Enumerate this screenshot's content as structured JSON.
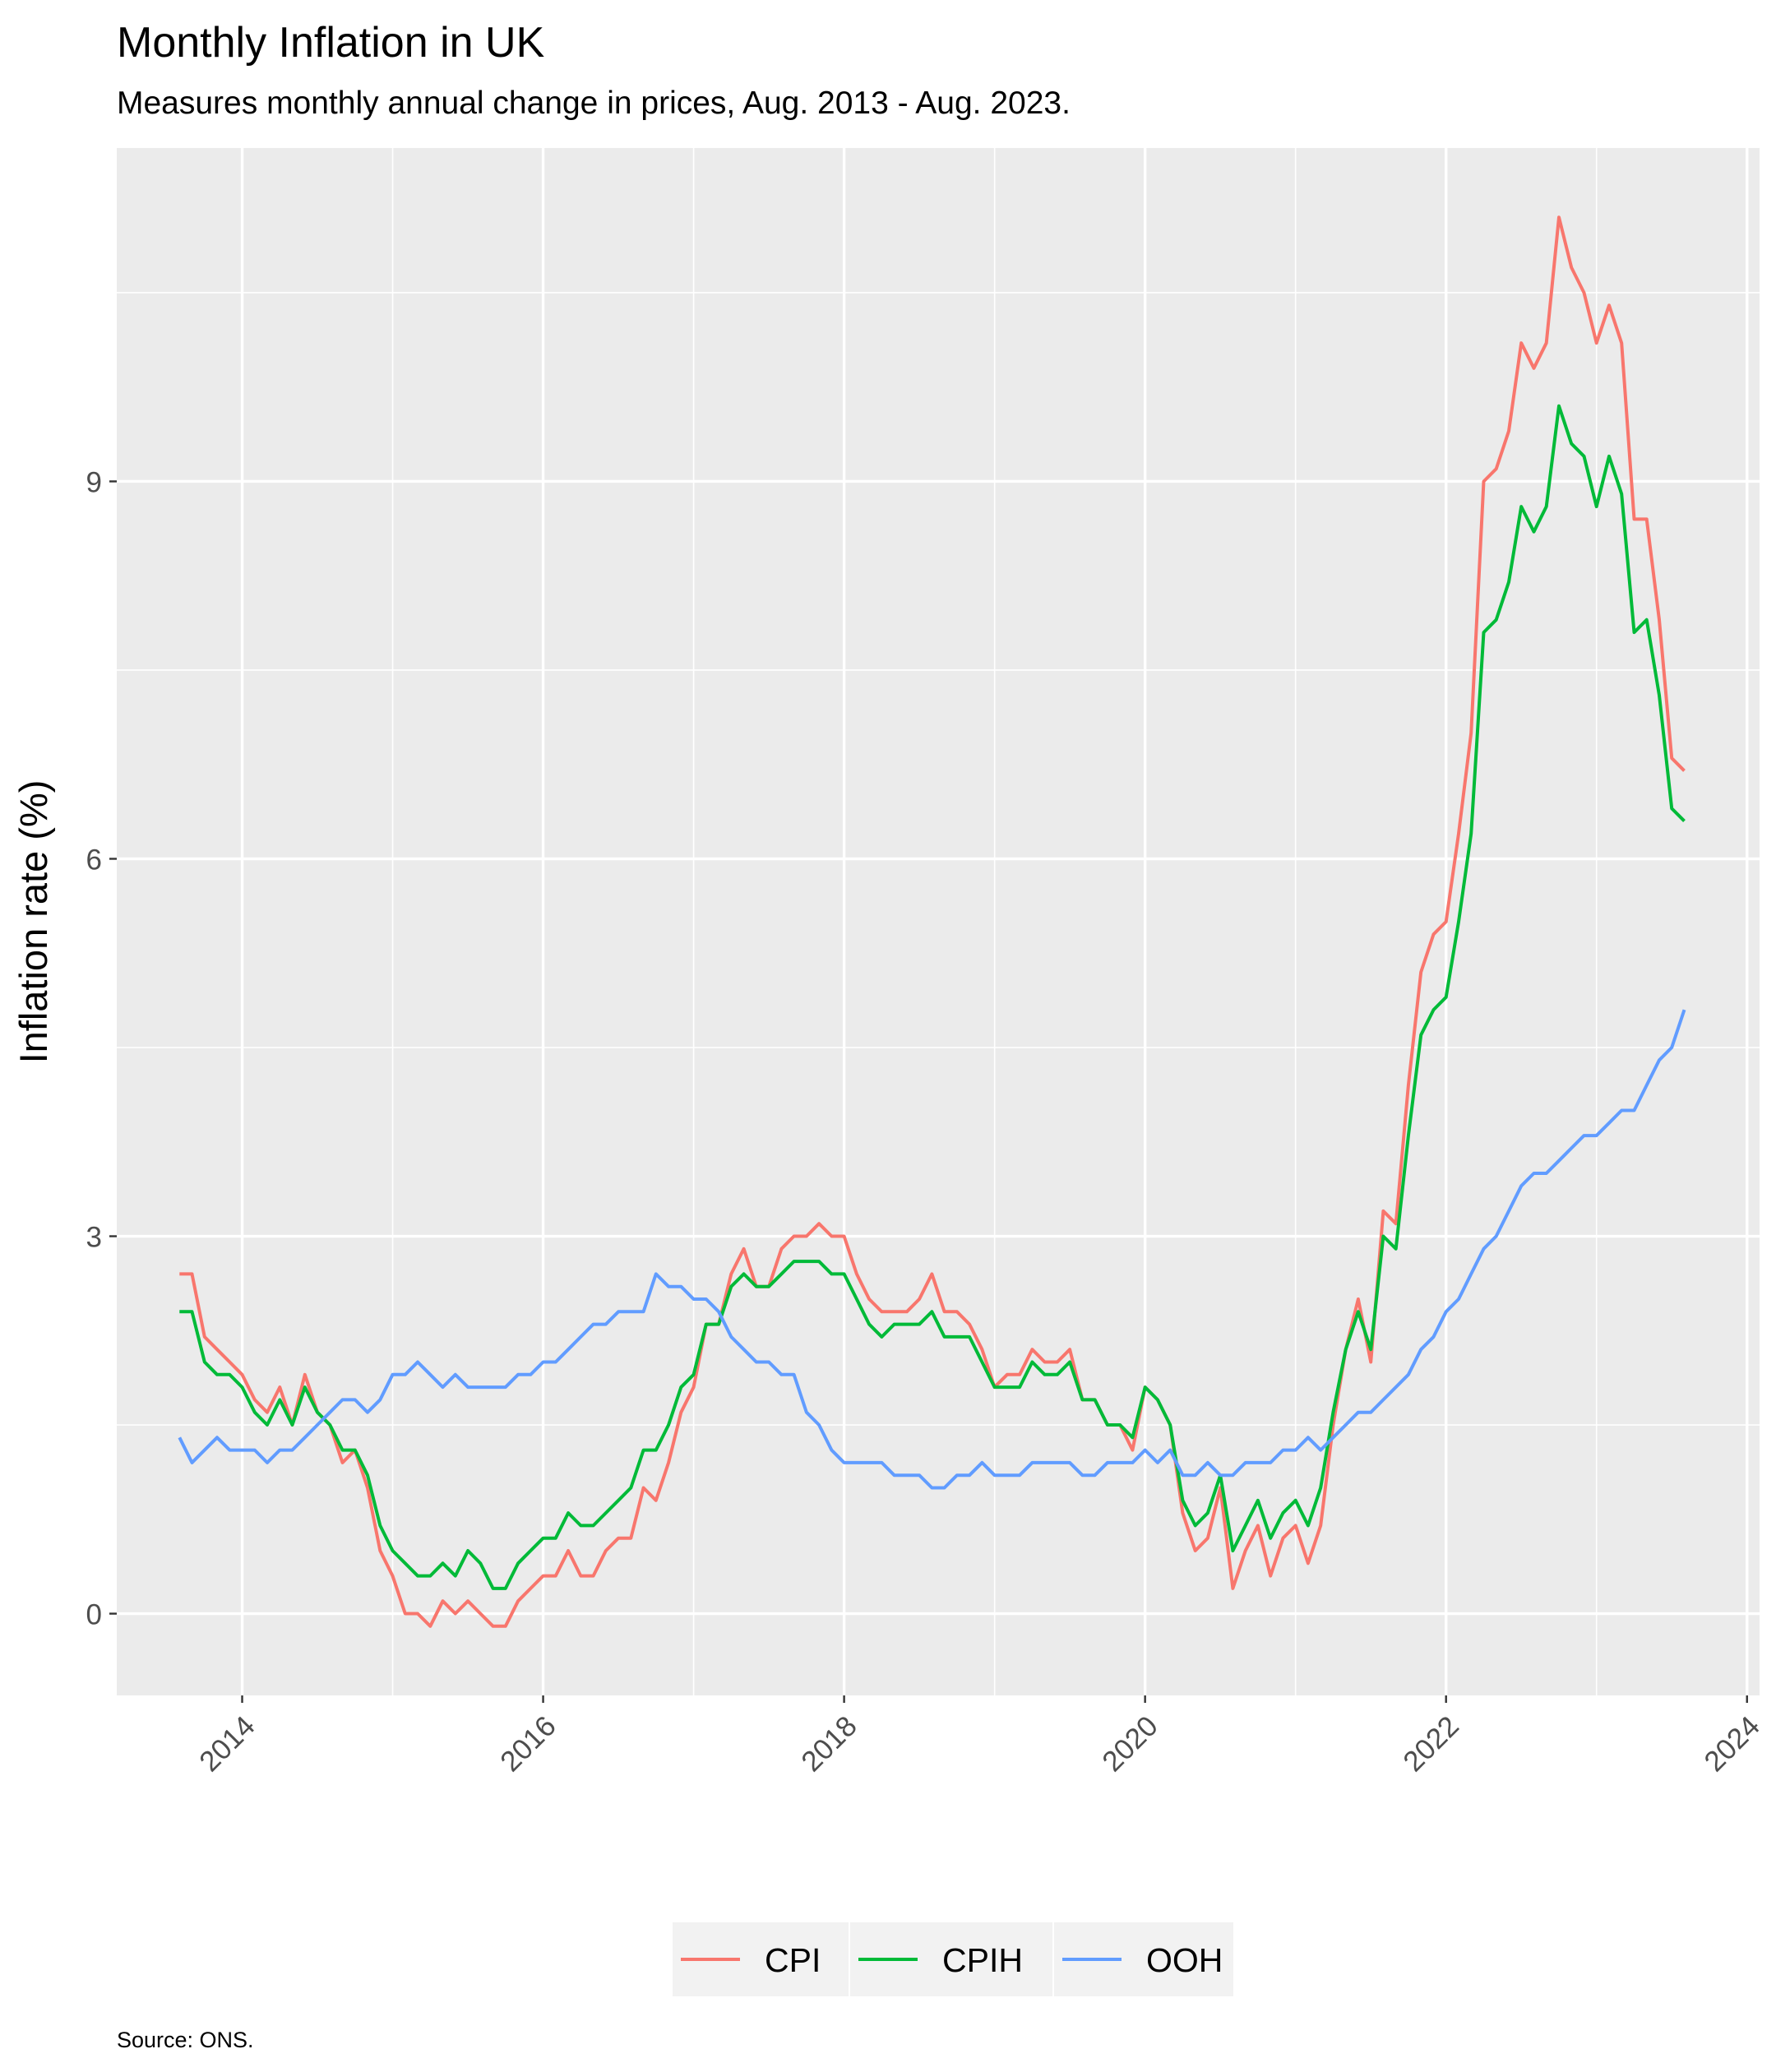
{
  "chart_data": {
    "type": "line",
    "title": "Monthly Inflation in UK",
    "subtitle": "Measures monthly annual change in prices, Aug. 2013 - Aug. 2023.",
    "caption": "Source: ONS.",
    "xlabel": "",
    "ylabel": "Inflation rate (%)",
    "x_ticks": [
      "2014",
      "2016",
      "2018",
      "2020",
      "2022",
      "2024"
    ],
    "y_ticks": [
      0,
      3,
      6,
      9
    ],
    "ylim": [
      -0.65,
      11.65
    ],
    "x_range": [
      "2013-03",
      "2024-02"
    ],
    "grid": true,
    "legend_position": "bottom",
    "colors": {
      "CPI": "#F8766D",
      "CPIH": "#00BA38",
      "OOH": "#619CFF",
      "panel": "#EBEBEB",
      "grid": "#FFFFFF"
    },
    "x": [
      "2013-08",
      "2013-09",
      "2013-10",
      "2013-11",
      "2013-12",
      "2014-01",
      "2014-02",
      "2014-03",
      "2014-04",
      "2014-05",
      "2014-06",
      "2014-07",
      "2014-08",
      "2014-09",
      "2014-10",
      "2014-11",
      "2014-12",
      "2015-01",
      "2015-02",
      "2015-03",
      "2015-04",
      "2015-05",
      "2015-06",
      "2015-07",
      "2015-08",
      "2015-09",
      "2015-10",
      "2015-11",
      "2015-12",
      "2016-01",
      "2016-02",
      "2016-03",
      "2016-04",
      "2016-05",
      "2016-06",
      "2016-07",
      "2016-08",
      "2016-09",
      "2016-10",
      "2016-11",
      "2016-12",
      "2017-01",
      "2017-02",
      "2017-03",
      "2017-04",
      "2017-05",
      "2017-06",
      "2017-07",
      "2017-08",
      "2017-09",
      "2017-10",
      "2017-11",
      "2017-12",
      "2018-01",
      "2018-02",
      "2018-03",
      "2018-04",
      "2018-05",
      "2018-06",
      "2018-07",
      "2018-08",
      "2018-09",
      "2018-10",
      "2018-11",
      "2018-12",
      "2019-01",
      "2019-02",
      "2019-03",
      "2019-04",
      "2019-05",
      "2019-06",
      "2019-07",
      "2019-08",
      "2019-09",
      "2019-10",
      "2019-11",
      "2019-12",
      "2020-01",
      "2020-02",
      "2020-03",
      "2020-04",
      "2020-05",
      "2020-06",
      "2020-07",
      "2020-08",
      "2020-09",
      "2020-10",
      "2020-11",
      "2020-12",
      "2021-01",
      "2021-02",
      "2021-03",
      "2021-04",
      "2021-05",
      "2021-06",
      "2021-07",
      "2021-08",
      "2021-09",
      "2021-10",
      "2021-11",
      "2021-12",
      "2022-01",
      "2022-02",
      "2022-03",
      "2022-04",
      "2022-05",
      "2022-06",
      "2022-07",
      "2022-08",
      "2022-09",
      "2022-10",
      "2022-11",
      "2022-12",
      "2023-01",
      "2023-02",
      "2023-03",
      "2023-04",
      "2023-05",
      "2023-06",
      "2023-07",
      "2023-08"
    ],
    "series": [
      {
        "name": "CPI",
        "values": [
          2.7,
          2.7,
          2.2,
          2.1,
          2.0,
          1.9,
          1.7,
          1.6,
          1.8,
          1.5,
          1.9,
          1.6,
          1.5,
          1.2,
          1.3,
          1.0,
          0.5,
          0.3,
          0.0,
          0.0,
          -0.1,
          0.1,
          0.0,
          0.1,
          0.0,
          -0.1,
          -0.1,
          0.1,
          0.2,
          0.3,
          0.3,
          0.5,
          0.3,
          0.3,
          0.5,
          0.6,
          0.6,
          1.0,
          0.9,
          1.2,
          1.6,
          1.8,
          2.3,
          2.3,
          2.7,
          2.9,
          2.6,
          2.6,
          2.9,
          3.0,
          3.0,
          3.1,
          3.0,
          3.0,
          2.7,
          2.5,
          2.4,
          2.4,
          2.4,
          2.5,
          2.7,
          2.4,
          2.4,
          2.3,
          2.1,
          1.8,
          1.9,
          1.9,
          2.1,
          2.0,
          2.0,
          2.1,
          1.7,
          1.7,
          1.5,
          1.5,
          1.3,
          1.8,
          1.7,
          1.5,
          0.8,
          0.5,
          0.6,
          1.0,
          0.2,
          0.5,
          0.7,
          0.3,
          0.6,
          0.7,
          0.4,
          0.7,
          1.5,
          2.1,
          2.5,
          2.0,
          3.2,
          3.1,
          4.2,
          5.1,
          5.4,
          5.5,
          6.2,
          7.0,
          9.0,
          9.1,
          9.4,
          10.1,
          9.9,
          10.1,
          11.1,
          10.7,
          10.5,
          10.1,
          10.4,
          10.1,
          8.7,
          8.7,
          7.9,
          6.8,
          6.7
        ]
      },
      {
        "name": "CPIH",
        "values": [
          2.4,
          2.4,
          2.0,
          1.9,
          1.9,
          1.8,
          1.6,
          1.5,
          1.7,
          1.5,
          1.8,
          1.6,
          1.5,
          1.3,
          1.3,
          1.1,
          0.7,
          0.5,
          0.4,
          0.3,
          0.3,
          0.4,
          0.3,
          0.5,
          0.4,
          0.2,
          0.2,
          0.4,
          0.5,
          0.6,
          0.6,
          0.8,
          0.7,
          0.7,
          0.8,
          0.9,
          1.0,
          1.3,
          1.3,
          1.5,
          1.8,
          1.9,
          2.3,
          2.3,
          2.6,
          2.7,
          2.6,
          2.6,
          2.7,
          2.8,
          2.8,
          2.8,
          2.7,
          2.7,
          2.5,
          2.3,
          2.2,
          2.3,
          2.3,
          2.3,
          2.4,
          2.2,
          2.2,
          2.2,
          2.0,
          1.8,
          1.8,
          1.8,
          2.0,
          1.9,
          1.9,
          2.0,
          1.7,
          1.7,
          1.5,
          1.5,
          1.4,
          1.8,
          1.7,
          1.5,
          0.9,
          0.7,
          0.8,
          1.1,
          0.5,
          0.7,
          0.9,
          0.6,
          0.8,
          0.9,
          0.7,
          1.0,
          1.6,
          2.1,
          2.4,
          2.1,
          3.0,
          2.9,
          3.8,
          4.6,
          4.8,
          4.9,
          5.5,
          6.2,
          7.8,
          7.9,
          8.2,
          8.8,
          8.6,
          8.8,
          9.6,
          9.3,
          9.2,
          8.8,
          9.2,
          8.9,
          7.8,
          7.9,
          7.3,
          6.4,
          6.3
        ]
      },
      {
        "name": "OOH",
        "values": [
          1.4,
          1.2,
          1.3,
          1.4,
          1.3,
          1.3,
          1.3,
          1.2,
          1.3,
          1.3,
          1.4,
          1.5,
          1.6,
          1.7,
          1.7,
          1.6,
          1.7,
          1.9,
          1.9,
          2.0,
          1.9,
          1.8,
          1.9,
          1.8,
          1.8,
          1.8,
          1.8,
          1.9,
          1.9,
          2.0,
          2.0,
          2.1,
          2.2,
          2.3,
          2.3,
          2.4,
          2.4,
          2.4,
          2.7,
          2.6,
          2.6,
          2.5,
          2.5,
          2.4,
          2.2,
          2.1,
          2.0,
          2.0,
          1.9,
          1.9,
          1.6,
          1.5,
          1.3,
          1.2,
          1.2,
          1.2,
          1.2,
          1.1,
          1.1,
          1.1,
          1.0,
          1.0,
          1.1,
          1.1,
          1.2,
          1.1,
          1.1,
          1.1,
          1.2,
          1.2,
          1.2,
          1.2,
          1.1,
          1.1,
          1.2,
          1.2,
          1.2,
          1.3,
          1.2,
          1.3,
          1.1,
          1.1,
          1.2,
          1.1,
          1.1,
          1.2,
          1.2,
          1.2,
          1.3,
          1.3,
          1.4,
          1.3,
          1.4,
          1.5,
          1.6,
          1.6,
          1.7,
          1.8,
          1.9,
          2.1,
          2.2,
          2.4,
          2.5,
          2.7,
          2.9,
          3.0,
          3.2,
          3.4,
          3.5,
          3.5,
          3.6,
          3.7,
          3.8,
          3.8,
          3.9,
          4.0,
          4.0,
          4.2,
          4.4,
          4.5,
          4.8
        ]
      }
    ]
  }
}
